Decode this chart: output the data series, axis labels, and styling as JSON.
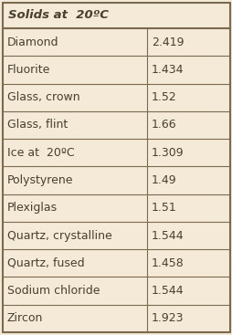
{
  "title": "Solids at  20ºC",
  "rows": [
    [
      "Diamond",
      "2.419"
    ],
    [
      "Fluorite",
      "1.434"
    ],
    [
      "Glass, crown",
      "1.52"
    ],
    [
      "Glass, flint",
      "1.66"
    ],
    [
      "Ice at  20ºC",
      "1.309"
    ],
    [
      "Polystyrene",
      "1.49"
    ],
    [
      "Plexiglas",
      "1.51"
    ],
    [
      "Quartz, crystalline",
      "1.544"
    ],
    [
      "Quartz, fused",
      "1.458"
    ],
    [
      "Sodium chloride",
      "1.544"
    ],
    [
      "Zircon",
      "1.923"
    ]
  ],
  "bg_color": "#f5ead8",
  "border_color": "#7a6a50",
  "text_color": "#4a3f2f",
  "col_split": 0.635,
  "title_fontsize": 9.5,
  "cell_fontsize": 9.0
}
